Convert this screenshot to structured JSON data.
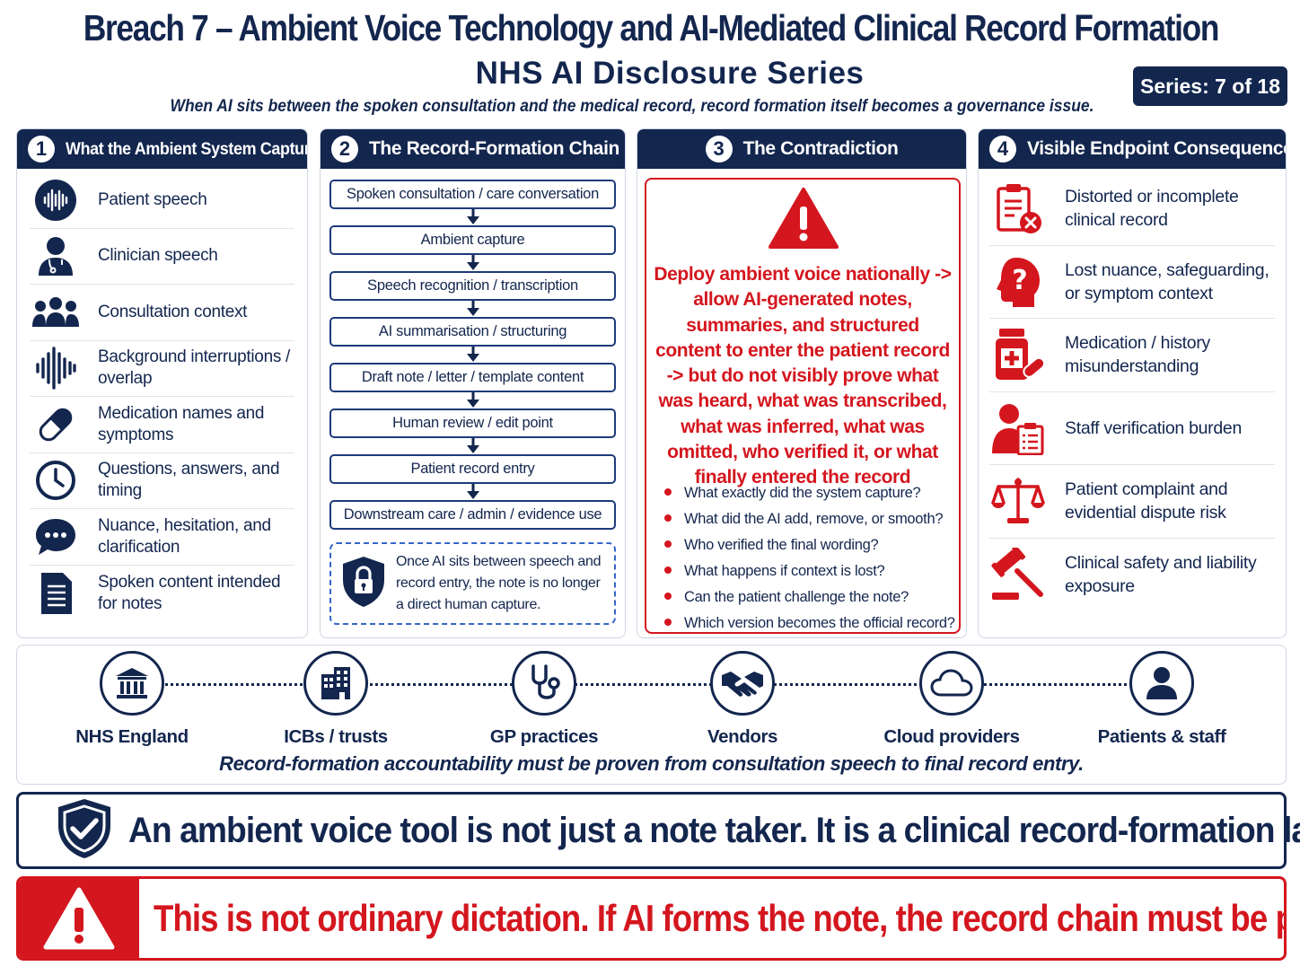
{
  "header": {
    "title": "Breach 7 – Ambient Voice Technology and AI-Mediated Clinical Record Formation",
    "subtitle": "NHS AI Disclosure Series",
    "tagline": "When AI sits between the spoken consultation and the medical record, record formation itself becomes a governance issue.",
    "series_badge": "Series: 7 of 18"
  },
  "colors": {
    "navy": "#13264e",
    "red": "#d4161e",
    "dashed_blue": "#3566c8"
  },
  "panel1": {
    "number": "1",
    "title": "What the Ambient System Captures",
    "items": [
      {
        "icon": "waveform-icon",
        "label": "Patient speech"
      },
      {
        "icon": "clinician-icon",
        "label": "Clinician speech"
      },
      {
        "icon": "group-icon",
        "label": "Consultation context"
      },
      {
        "icon": "sound-bars-icon",
        "label": "Background interruptions / overlap"
      },
      {
        "icon": "pill-icon",
        "label": "Medication names and symptoms"
      },
      {
        "icon": "clock-icon",
        "label": "Questions, answers, and timing"
      },
      {
        "icon": "chat-bubble-icon",
        "label": "Nuance, hesitation, and clarification"
      },
      {
        "icon": "document-icon",
        "label": "Spoken content intended for notes"
      }
    ]
  },
  "panel2": {
    "number": "2",
    "title": "The Record-Formation Chain",
    "steps": [
      "Spoken consultation / care conversation",
      "Ambient capture",
      "Speech recognition / transcription",
      "AI summarisation / structuring",
      "Draft note / letter / template content",
      "Human review / edit point",
      "Patient record entry",
      "Downstream care / admin / evidence use"
    ],
    "note": "Once AI sits between speech and record entry, the note is no longer a direct human capture."
  },
  "panel3": {
    "number": "3",
    "title": "The Contradiction",
    "statement": "Deploy ambient voice nationally -> allow AI-generated notes, summaries, and structured content to enter the patient record -> but do not visibly prove what was heard, what was transcribed, what was inferred, what was omitted, who verified it, or what finally entered the record",
    "questions": [
      "What exactly did the system capture?",
      "What did the AI add, remove, or smooth?",
      "Who verified the final wording?",
      "What happens if context is lost?",
      "Can the patient challenge the note?",
      "Which version becomes the official record?"
    ]
  },
  "panel4": {
    "number": "4",
    "title": "Visible Endpoint Consequences",
    "items": [
      {
        "icon": "clipboard-x-icon",
        "label": "Distorted or incomplete clinical record"
      },
      {
        "icon": "head-question-icon",
        "label": "Lost nuance, safeguarding, or symptom context"
      },
      {
        "icon": "medicine-bottle-icon",
        "label": "Medication / history misunderstanding"
      },
      {
        "icon": "staff-checklist-icon",
        "label": "Staff verification burden"
      },
      {
        "icon": "scales-icon",
        "label": "Patient complaint and evidential dispute risk"
      },
      {
        "icon": "gavel-icon",
        "label": "Clinical safety and liability exposure"
      }
    ]
  },
  "stakeholders": {
    "items": [
      {
        "icon": "government-building-icon",
        "label": "NHS England"
      },
      {
        "icon": "office-building-icon",
        "label": "ICBs / trusts"
      },
      {
        "icon": "stethoscope-icon",
        "label": "GP practices"
      },
      {
        "icon": "handshake-icon",
        "label": "Vendors"
      },
      {
        "icon": "cloud-icon",
        "label": "Cloud providers"
      },
      {
        "icon": "person-icon",
        "label": "Patients & staff"
      }
    ],
    "caption": "Record-formation accountability must be proven from consultation speech to final record entry."
  },
  "statement": "An ambient voice tool is not just a note taker. It is a clinical record-formation layer.",
  "warning": "This is not ordinary dictation. If AI forms the note, the record chain must be provable."
}
